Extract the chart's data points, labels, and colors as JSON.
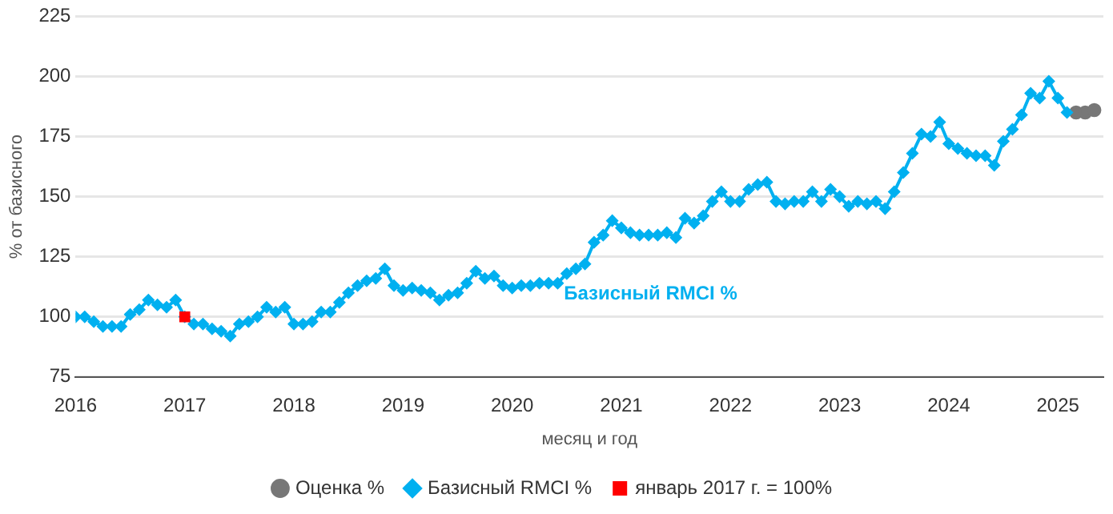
{
  "chart_data": {
    "type": "line",
    "xlabel": "месяц и год",
    "ylabel": "% от базисного",
    "xlim": [
      "2016-01",
      "2025-06"
    ],
    "xticks": [
      "2016",
      "2017",
      "2018",
      "2019",
      "2020",
      "2021",
      "2022",
      "2023",
      "2024",
      "2025"
    ],
    "ylim": [
      75,
      225
    ],
    "yticks": [
      75,
      100,
      125,
      150,
      175,
      200,
      225
    ],
    "grid": "y",
    "legend": "bottom",
    "annotations": [
      "Базисный RMCI %"
    ],
    "series": [
      {
        "name": "Оценка %",
        "type": "scatter",
        "marker": "circle",
        "color": "#777777",
        "x": [
          "2025-03",
          "2025-04",
          "2025-05"
        ],
        "values": [
          185,
          185,
          186
        ]
      },
      {
        "name": "Базисный RMCI %",
        "marker": "diamond",
        "color": "#00b0f0",
        "x": [
          "2016-01",
          "2016-02",
          "2016-03",
          "2016-04",
          "2016-05",
          "2016-06",
          "2016-07",
          "2016-08",
          "2016-09",
          "2016-10",
          "2016-11",
          "2016-12",
          "2017-01",
          "2017-02",
          "2017-03",
          "2017-04",
          "2017-05",
          "2017-06",
          "2017-07",
          "2017-08",
          "2017-09",
          "2017-10",
          "2017-11",
          "2017-12",
          "2018-01",
          "2018-02",
          "2018-03",
          "2018-04",
          "2018-05",
          "2018-06",
          "2018-07",
          "2018-08",
          "2018-09",
          "2018-10",
          "2018-11",
          "2018-12",
          "2019-01",
          "2019-02",
          "2019-03",
          "2019-04",
          "2019-05",
          "2019-06",
          "2019-07",
          "2019-08",
          "2019-09",
          "2019-10",
          "2019-11",
          "2019-12",
          "2020-01",
          "2020-02",
          "2020-03",
          "2020-04",
          "2020-05",
          "2020-06",
          "2020-07",
          "2020-08",
          "2020-09",
          "2020-10",
          "2020-11",
          "2020-12",
          "2021-01",
          "2021-02",
          "2021-03",
          "2021-04",
          "2021-05",
          "2021-06",
          "2021-07",
          "2021-08",
          "2021-09",
          "2021-10",
          "2021-11",
          "2021-12",
          "2022-01",
          "2022-02",
          "2022-03",
          "2022-04",
          "2022-05",
          "2022-06",
          "2022-07",
          "2022-08",
          "2022-09",
          "2022-10",
          "2022-11",
          "2022-12",
          "2023-01",
          "2023-02",
          "2023-03",
          "2023-04",
          "2023-05",
          "2023-06",
          "2023-07",
          "2023-08",
          "2023-09",
          "2023-10",
          "2023-11",
          "2023-12",
          "2024-01",
          "2024-02",
          "2024-03",
          "2024-04",
          "2024-05",
          "2024-06",
          "2024-07",
          "2024-08",
          "2024-09",
          "2024-10",
          "2024-11",
          "2024-12",
          "2025-01",
          "2025-02"
        ],
        "values": [
          100,
          100,
          98,
          96,
          96,
          96,
          101,
          103,
          107,
          105,
          104,
          107,
          100,
          97,
          97,
          95,
          94,
          92,
          97,
          98,
          100,
          104,
          102,
          104,
          97,
          97,
          98,
          102,
          102,
          106,
          110,
          113,
          115,
          116,
          120,
          113,
          111,
          112,
          111,
          110,
          107,
          109,
          110,
          114,
          119,
          116,
          117,
          113,
          112,
          113,
          113,
          114,
          114,
          114,
          118,
          120,
          122,
          131,
          134,
          140,
          137,
          135,
          134,
          134,
          134,
          135,
          133,
          141,
          139,
          142,
          148,
          152,
          148,
          148,
          153,
          155,
          156,
          148,
          147,
          148,
          148,
          152,
          148,
          153,
          150,
          146,
          148,
          147,
          148,
          145,
          152,
          160,
          168,
          176,
          175,
          181,
          172,
          170,
          168,
          167,
          167,
          163,
          173,
          178,
          184,
          193,
          191,
          198,
          191,
          185
        ]
      },
      {
        "name": "январь 2017 г. = 100%",
        "type": "scatter",
        "marker": "square",
        "color": "#ff0000",
        "x": [
          "2017-01"
        ],
        "values": [
          100
        ]
      }
    ]
  }
}
